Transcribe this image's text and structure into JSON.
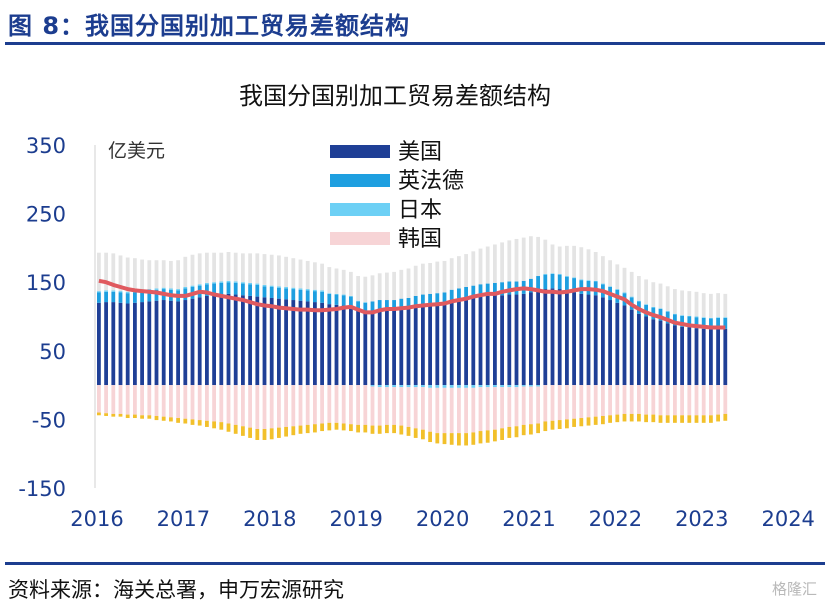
{
  "header": {
    "figure_title": "图 8：我国分国别加工贸易差额结构"
  },
  "footer": {
    "source": "资料来源：海关总署，申万宏源研究",
    "watermark": "格隆汇"
  },
  "colors": {
    "brand": "#1c3d8f",
    "us": "#1f3f96",
    "eu": "#1e9fe0",
    "japan": "#6dd0f5",
    "korea": "#f7d4d6",
    "other_negative": "#f2c02b",
    "other_positive": "#e4e4e4",
    "total_line": "#e05a5f"
  },
  "chart_data": {
    "type": "bar",
    "title": "我国分国别加工贸易差额结构",
    "ylabel": "亿美元",
    "ylim": [
      -150,
      350
    ],
    "yticks": [
      -150,
      -50,
      50,
      150,
      250,
      350
    ],
    "x_labels": [
      "2016",
      "2017",
      "2018",
      "2019",
      "2020",
      "2021",
      "2022",
      "2023",
      "2024"
    ],
    "legend_position": "top-center",
    "legend": [
      "美国",
      "英法德",
      "日本",
      "韩国"
    ],
    "grid": false,
    "stacked": true,
    "series": [
      {
        "name": "美国",
        "color": "#1f3f96",
        "values": [
          120,
          121,
          121,
          120,
          119,
          120,
          121,
          122,
          123,
          124,
          123,
          122,
          124,
          126,
          128,
          130,
          131,
          132,
          133,
          132,
          131,
          130,
          129,
          128,
          127,
          126,
          125,
          124,
          123,
          122,
          121,
          120,
          118,
          117,
          116,
          114,
          108,
          106,
          108,
          110,
          110,
          109,
          111,
          112,
          115,
          116,
          117,
          118,
          119,
          122,
          124,
          126,
          128,
          129,
          130,
          131,
          131,
          132,
          132,
          133,
          135,
          139,
          140,
          141,
          140,
          137,
          135,
          133,
          132,
          131,
          128,
          124,
          120,
          116,
          110,
          104,
          100,
          96,
          94,
          90,
          87,
          85,
          84,
          83,
          82,
          81,
          82,
          82
        ]
      },
      {
        "name": "英法德",
        "color": "#1e9fe0",
        "values": [
          15,
          15,
          15,
          15,
          15,
          15,
          16,
          16,
          16,
          16,
          16,
          16,
          17,
          17,
          17,
          17,
          17,
          17,
          17,
          17,
          17,
          17,
          17,
          16,
          16,
          16,
          16,
          16,
          16,
          16,
          16,
          16,
          15,
          15,
          15,
          15,
          14,
          14,
          14,
          14,
          14,
          15,
          15,
          15,
          15,
          16,
          16,
          16,
          16,
          17,
          17,
          17,
          17,
          18,
          18,
          18,
          19,
          19,
          19,
          19,
          20,
          20,
          21,
          21,
          21,
          21,
          21,
          20,
          20,
          20,
          19,
          19,
          19,
          18,
          18,
          18,
          17,
          17,
          17,
          17,
          16,
          16,
          16,
          16,
          16,
          16,
          16,
          16
        ]
      },
      {
        "name": "日本",
        "color": "#6dd0f5",
        "values": [
          2,
          2,
          2,
          2,
          2,
          2,
          2,
          2,
          2,
          2,
          2,
          2,
          2,
          2,
          2,
          2,
          2,
          2,
          2,
          2,
          2,
          2,
          2,
          2,
          2,
          2,
          2,
          2,
          2,
          2,
          2,
          2,
          1,
          1,
          1,
          1,
          1,
          1,
          -2,
          -3,
          -3,
          -3,
          -3,
          -3,
          -3,
          -3,
          -4,
          -4,
          -4,
          -4,
          -4,
          -4,
          -4,
          -3,
          -3,
          -3,
          -3,
          -3,
          -3,
          -2,
          -2,
          -2,
          1,
          1,
          1,
          1,
          1,
          1,
          1,
          1,
          1,
          1,
          1,
          1,
          1,
          1,
          1,
          1,
          1,
          1,
          1,
          1,
          1,
          1,
          1,
          1,
          1,
          1
        ]
      },
      {
        "name": "韩国",
        "color": "#f7d4d6",
        "values": [
          -40,
          -41,
          -42,
          -42,
          -43,
          -43,
          -44,
          -44,
          -45,
          -46,
          -47,
          -48,
          -49,
          -50,
          -51,
          -52,
          -53,
          -54,
          -56,
          -58,
          -60,
          -62,
          -64,
          -64,
          -63,
          -62,
          -61,
          -60,
          -59,
          -58,
          -57,
          -56,
          -55,
          -55,
          -56,
          -57,
          -58,
          -58,
          -57,
          -56,
          -55,
          -55,
          -56,
          -58,
          -60,
          -62,
          -64,
          -66,
          -66,
          -66,
          -66,
          -66,
          -65,
          -64,
          -63,
          -62,
          -60,
          -58,
          -57,
          -56,
          -55,
          -54,
          -53,
          -52,
          -51,
          -50,
          -49,
          -48,
          -47,
          -46,
          -45,
          -44,
          -43,
          -42,
          -42,
          -42,
          -43,
          -43,
          -44,
          -44,
          -44,
          -44,
          -44,
          -44,
          -44,
          -44,
          -43,
          -42
        ]
      },
      {
        "name": "",
        "color": "#f2c02b",
        "values": [
          -4,
          -4,
          -4,
          -4,
          -5,
          -5,
          -5,
          -5,
          -6,
          -6,
          -6,
          -7,
          -7,
          -8,
          -8,
          -9,
          -10,
          -11,
          -12,
          -13,
          -14,
          -15,
          -16,
          -16,
          -16,
          -15,
          -14,
          -13,
          -12,
          -12,
          -12,
          -11,
          -11,
          -10,
          -10,
          -10,
          -11,
          -11,
          -12,
          -12,
          -12,
          -12,
          -13,
          -13,
          -14,
          -14,
          -15,
          -15,
          -16,
          -17,
          -18,
          -18,
          -18,
          -18,
          -18,
          -17,
          -17,
          -16,
          -16,
          -15,
          -15,
          -14,
          -14,
          -13,
          -13,
          -13,
          -12,
          -12,
          -12,
          -12,
          -12,
          -11,
          -11,
          -11,
          -11,
          -11,
          -11,
          -11,
          -11,
          -11,
          -11,
          -11,
          -11,
          -11,
          -11,
          -11,
          -10,
          -10
        ]
      },
      {
        "name": "",
        "color": "#e4e4e4",
        "values": [
          56,
          55,
          54,
          52,
          50,
          48,
          44,
          42,
          41,
          40,
          40,
          42,
          44,
          45,
          45,
          44,
          43,
          42,
          42,
          42,
          42,
          43,
          44,
          45,
          45,
          45,
          44,
          43,
          42,
          41,
          40,
          39,
          38,
          37,
          36,
          35,
          36,
          37,
          38,
          39,
          40,
          41,
          42,
          43,
          44,
          45,
          45,
          46,
          46,
          46,
          47,
          48,
          50,
          52,
          54,
          56,
          58,
          60,
          62,
          63,
          62,
          57,
          50,
          42,
          40,
          44,
          46,
          47,
          45,
          42,
          40,
          38,
          36,
          36,
          36,
          36,
          36,
          36,
          36,
          36,
          36,
          36,
          36,
          36,
          35,
          35,
          35,
          34
        ]
      },
      {
        "name": "",
        "color": "#e05a5f",
        "kind": "line",
        "values": [
          152,
          150,
          146,
          143,
          140,
          138,
          137,
          136,
          135,
          133,
          131,
          130,
          130,
          133,
          136,
          135,
          132,
          130,
          128,
          126,
          124,
          121,
          118,
          116,
          115,
          113,
          112,
          111,
          110,
          110,
          109,
          109,
          110,
          111,
          113,
          114,
          110,
          106,
          106,
          109,
          111,
          111,
          112,
          113,
          115,
          116,
          117,
          118,
          119,
          122,
          124,
          126,
          129,
          131,
          133,
          133,
          136,
          138,
          140,
          141,
          140,
          138,
          136,
          136,
          135,
          136,
          138,
          140,
          140,
          139,
          137,
          133,
          129,
          125,
          117,
          111,
          106,
          102,
          99,
          95,
          91,
          89,
          87,
          86,
          85,
          84,
          84,
          84
        ]
      }
    ]
  }
}
